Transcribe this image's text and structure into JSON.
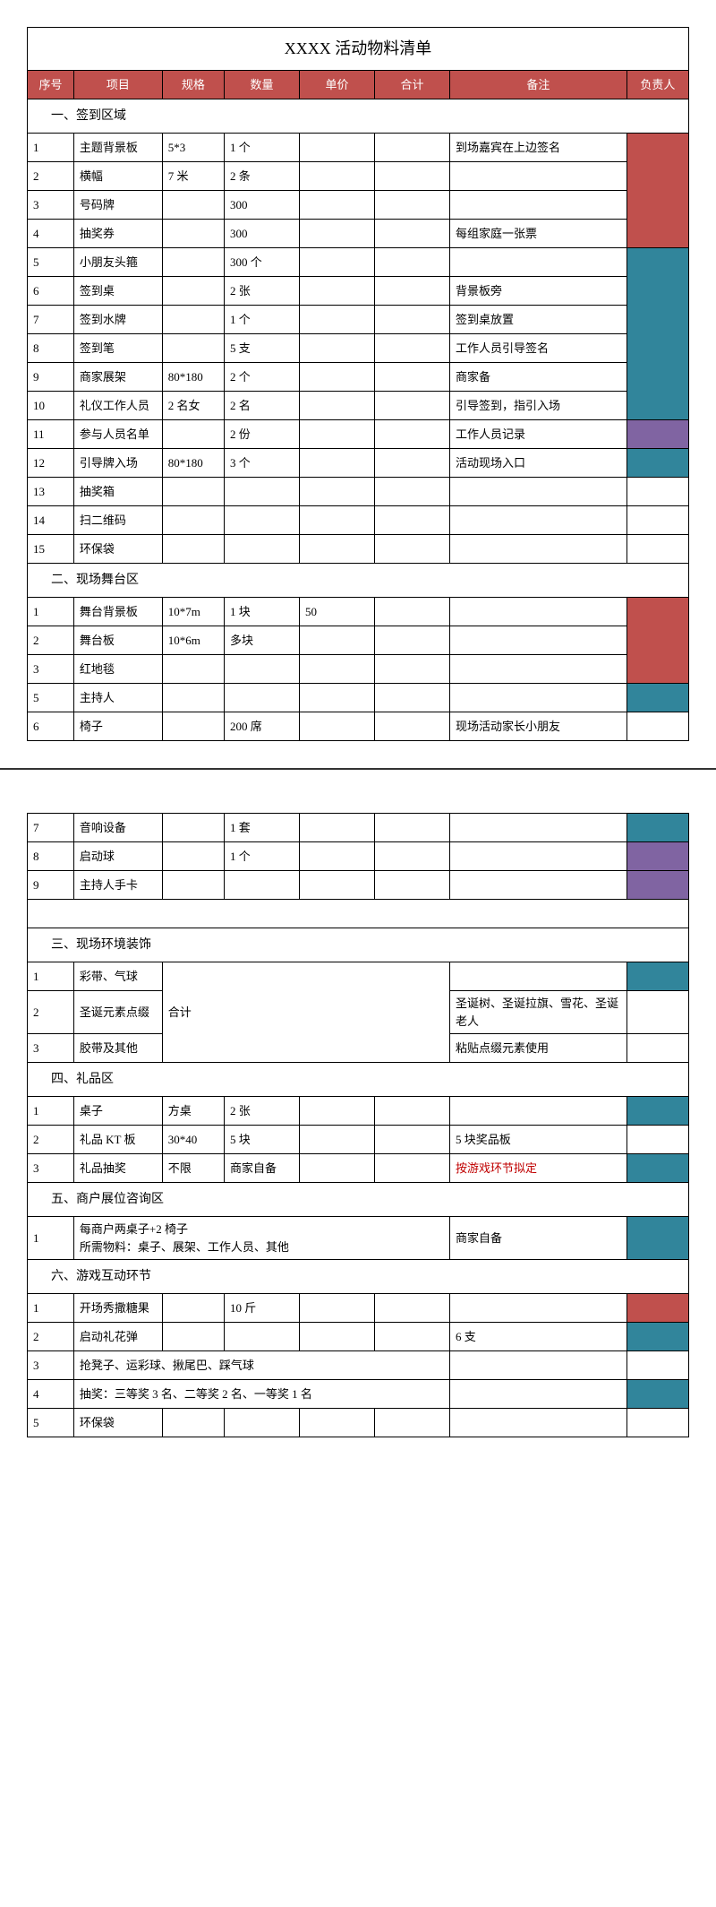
{
  "title": "XXXX 活动物料清单",
  "headers": {
    "seq": "序号",
    "item": "项目",
    "spec": "规格",
    "qty": "数量",
    "price": "单价",
    "total": "合计",
    "note": "备注",
    "owner": "负责人"
  },
  "colors": {
    "headerBg": "#c0504d",
    "headerFg": "#ffffff",
    "teal": "#31859b",
    "purple": "#8064a2",
    "red": "#c0504d",
    "noteRed": "#c00000"
  },
  "sections": {
    "s1": {
      "title": "一、签到区域"
    },
    "s2": {
      "title": "二、现场舞台区"
    },
    "s3": {
      "title": "三、现场环境装饰"
    },
    "s4": {
      "title": "四、礼品区"
    },
    "s5": {
      "title": "五、商户展位咨询区"
    },
    "s6": {
      "title": "六、游戏互动环节"
    }
  },
  "r": {
    "s1_1": {
      "seq": "1",
      "item": "主题背景板",
      "spec": "5*3",
      "qty": "1 个",
      "note": "到场嘉宾在上边签名"
    },
    "s1_2": {
      "seq": "2",
      "item": "横幅",
      "spec": "7 米",
      "qty": "2 条"
    },
    "s1_3": {
      "seq": "3",
      "item": "号码牌",
      "qty": "300"
    },
    "s1_4": {
      "seq": "4",
      "item": "抽奖券",
      "qty": "300",
      "note": "每组家庭一张票"
    },
    "s1_5": {
      "seq": "5",
      "item": "小朋友头箍",
      "qty": "300 个"
    },
    "s1_6": {
      "seq": "6",
      "item": "签到桌",
      "qty": "2 张",
      "note": "背景板旁"
    },
    "s1_7": {
      "seq": "7",
      "item": "签到水牌",
      "qty": "1 个",
      "note": "签到桌放置"
    },
    "s1_8": {
      "seq": "8",
      "item": "签到笔",
      "qty": "5 支",
      "note": "工作人员引导签名"
    },
    "s1_9": {
      "seq": "9",
      "item": "商家展架",
      "spec": "80*180",
      "qty": "2 个",
      "note": "商家备"
    },
    "s1_10": {
      "seq": "10",
      "item": "礼仪工作人员",
      "spec": "2 名女",
      "qty": "2 名",
      "note": "引导签到，指引入场"
    },
    "s1_11": {
      "seq": "11",
      "item": "参与人员名单",
      "qty": "2 份",
      "note": "工作人员记录"
    },
    "s1_12": {
      "seq": "12",
      "item": "引导牌入场",
      "spec": "80*180",
      "qty": "3 个",
      "note": "活动现场入口"
    },
    "s1_13": {
      "seq": "13",
      "item": "抽奖箱"
    },
    "s1_14": {
      "seq": "14",
      "item": "扫二维码"
    },
    "s1_15": {
      "seq": "15",
      "item": "环保袋"
    },
    "s2_1": {
      "seq": "1",
      "item": "舞台背景板",
      "spec": "10*7m",
      "qty": "1 块",
      "price": "50"
    },
    "s2_2": {
      "seq": "2",
      "item": "舞台板",
      "spec": "10*6m",
      "qty": "多块"
    },
    "s2_3": {
      "seq": "3",
      "item": "红地毯"
    },
    "s2_5": {
      "seq": "5",
      "item": "主持人"
    },
    "s2_6": {
      "seq": "6",
      "item": "椅子",
      "qty": "200 席",
      "note": "现场活动家长小朋友"
    },
    "s2_7": {
      "seq": "7",
      "item": "音响设备",
      "qty": "1 套"
    },
    "s2_8": {
      "seq": "8",
      "item": "启动球",
      "qty": "1 个"
    },
    "s2_9": {
      "seq": "9",
      "item": "主持人手卡"
    },
    "s3_1": {
      "seq": "1",
      "item": "彩带、气球"
    },
    "s3_2": {
      "seq": "2",
      "item": "圣诞元素点缀",
      "note": "圣诞树、圣诞拉旗、雪花、圣诞老人"
    },
    "s3_3": {
      "seq": "3",
      "item": "胶带及其他",
      "note": "粘贴点缀元素使用"
    },
    "s3_merge": {
      "text": "合计"
    },
    "s4_1": {
      "seq": "1",
      "item": "桌子",
      "spec": "方桌",
      "qty": "2 张"
    },
    "s4_2": {
      "seq": "2",
      "item": "礼品 KT 板",
      "spec": "30*40",
      "qty": "5 块",
      "note": "5 块奖品板"
    },
    "s4_3": {
      "seq": "3",
      "item": "礼品抽奖",
      "spec": "不限",
      "qty": "商家自备",
      "note": "按游戏环节拟定"
    },
    "s5_1": {
      "seq": "1",
      "item": "每商户两桌子+2 椅子\n所需物料：桌子、展架、工作人员、其他",
      "note": "商家自备"
    },
    "s6_1": {
      "seq": "1",
      "item": "开场秀撒糖果",
      "qty": "10 斤"
    },
    "s6_2": {
      "seq": "2",
      "item": "启动礼花弹",
      "note": "6 支"
    },
    "s6_3": {
      "seq": "3",
      "item": "抢凳子、运彩球、揪尾巴、踩气球"
    },
    "s6_4": {
      "seq": "4",
      "item": "抽奖：三等奖 3 名、二等奖 2 名、一等奖 1 名"
    },
    "s6_5": {
      "seq": "5",
      "item": "环保袋"
    }
  }
}
